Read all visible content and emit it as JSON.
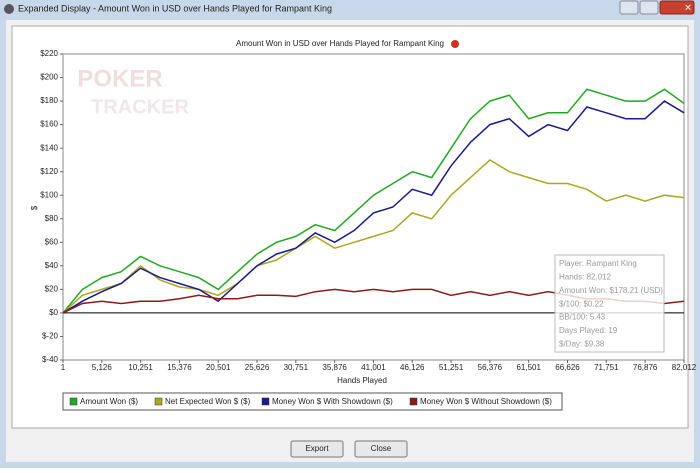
{
  "window": {
    "title": "Expanded Display - Amount Won in USD over Hands Played for Rampant King"
  },
  "watermark": [
    "POKER",
    "TRACKER"
  ],
  "chart_data": {
    "type": "line",
    "title": "Amount Won in USD over Hands Played for Rampant King",
    "x_label": "Hands Played",
    "y_label": "$",
    "x": [
      1,
      2563,
      5126,
      7688,
      10251,
      12813,
      15376,
      17938,
      20501,
      23063,
      25626,
      28188,
      30751,
      33313,
      35876,
      38438,
      41001,
      43563,
      46126,
      48688,
      51251,
      53813,
      56376,
      58938,
      61501,
      64063,
      66626,
      69188,
      71751,
      74313,
      76876,
      79438,
      82012
    ],
    "series": [
      {
        "name": "Amount Won ($)",
        "color": "#22a822",
        "values": [
          0,
          20,
          30,
          35,
          48,
          40,
          35,
          30,
          20,
          35,
          50,
          60,
          65,
          75,
          70,
          85,
          100,
          110,
          120,
          115,
          140,
          165,
          180,
          185,
          165,
          170,
          170,
          190,
          185,
          180,
          180,
          190,
          178
        ]
      },
      {
        "name": "Net Expected Won $ ($)",
        "color": "#a8a820",
        "values": [
          0,
          15,
          20,
          25,
          40,
          28,
          22,
          20,
          15,
          25,
          40,
          45,
          55,
          65,
          55,
          60,
          65,
          70,
          85,
          80,
          100,
          115,
          130,
          120,
          115,
          110,
          110,
          105,
          95,
          100,
          95,
          100,
          98
        ]
      },
      {
        "name": "Money Won $ With Showdown ($)",
        "color": "#1a1a8c",
        "values": [
          0,
          10,
          18,
          25,
          38,
          30,
          25,
          20,
          10,
          25,
          40,
          50,
          55,
          68,
          60,
          70,
          85,
          90,
          105,
          100,
          125,
          145,
          160,
          165,
          150,
          160,
          155,
          175,
          170,
          165,
          165,
          180,
          170
        ]
      },
      {
        "name": "Money Won $ Without Showdown ($)",
        "color": "#8c1a1a",
        "values": [
          0,
          8,
          10,
          8,
          10,
          10,
          12,
          15,
          12,
          12,
          15,
          15,
          14,
          18,
          20,
          18,
          20,
          18,
          20,
          20,
          15,
          18,
          15,
          18,
          15,
          18,
          15,
          12,
          12,
          10,
          10,
          8,
          10
        ]
      }
    ],
    "xlim": [
      1,
      82012
    ],
    "xticks": [
      1,
      {
        "value": 5126,
        "label": "5,126"
      },
      {
        "value": 10251,
        "label": "10,251"
      },
      {
        "value": 15376,
        "label": "15,376"
      },
      {
        "value": 20501,
        "label": "20,501"
      },
      {
        "value": 25626,
        "label": "25,626"
      },
      {
        "value": 30751,
        "label": "30,751"
      },
      {
        "value": 35876,
        "label": "35,876"
      },
      {
        "value": 41001,
        "label": "41,001"
      },
      {
        "value": 46126,
        "label": "46,126"
      },
      {
        "value": 51251,
        "label": "51,251"
      },
      {
        "value": 56376,
        "label": "56,376"
      },
      {
        "value": 61501,
        "label": "61,501"
      },
      {
        "value": 66626,
        "label": "66,626"
      },
      {
        "value": 71751,
        "label": "71,751"
      },
      {
        "value": 76876,
        "label": "76,876"
      },
      {
        "value": 82012,
        "label": "82,012"
      }
    ],
    "ylim": [
      -40,
      220
    ],
    "yticks": [
      {
        "value": -40,
        "label": "$-40"
      },
      {
        "value": -20,
        "label": "$-20"
      },
      {
        "value": 0,
        "label": "$0"
      },
      {
        "value": 20,
        "label": "$20"
      },
      {
        "value": 40,
        "label": "$40"
      },
      {
        "value": 60,
        "label": "$60"
      },
      {
        "value": 80,
        "label": "$80"
      },
      {
        "value": 100,
        "label": "$100"
      },
      {
        "value": 120,
        "label": "$120"
      },
      {
        "value": 140,
        "label": "$140"
      },
      {
        "value": 160,
        "label": "$160"
      },
      {
        "value": 180,
        "label": "$180"
      },
      {
        "value": 200,
        "label": "$200"
      },
      {
        "value": 220,
        "label": "$220"
      }
    ],
    "grid": false
  },
  "info": [
    "Player: Rampant King",
    "Hands: 82,012",
    "Amount Won: $178.21 (USD)",
    "$/100: $0.22",
    "BB/100: 5.43",
    "Days Played: 19",
    "$/Day: $9.38"
  ],
  "buttons": [
    "Export",
    "Close"
  ]
}
